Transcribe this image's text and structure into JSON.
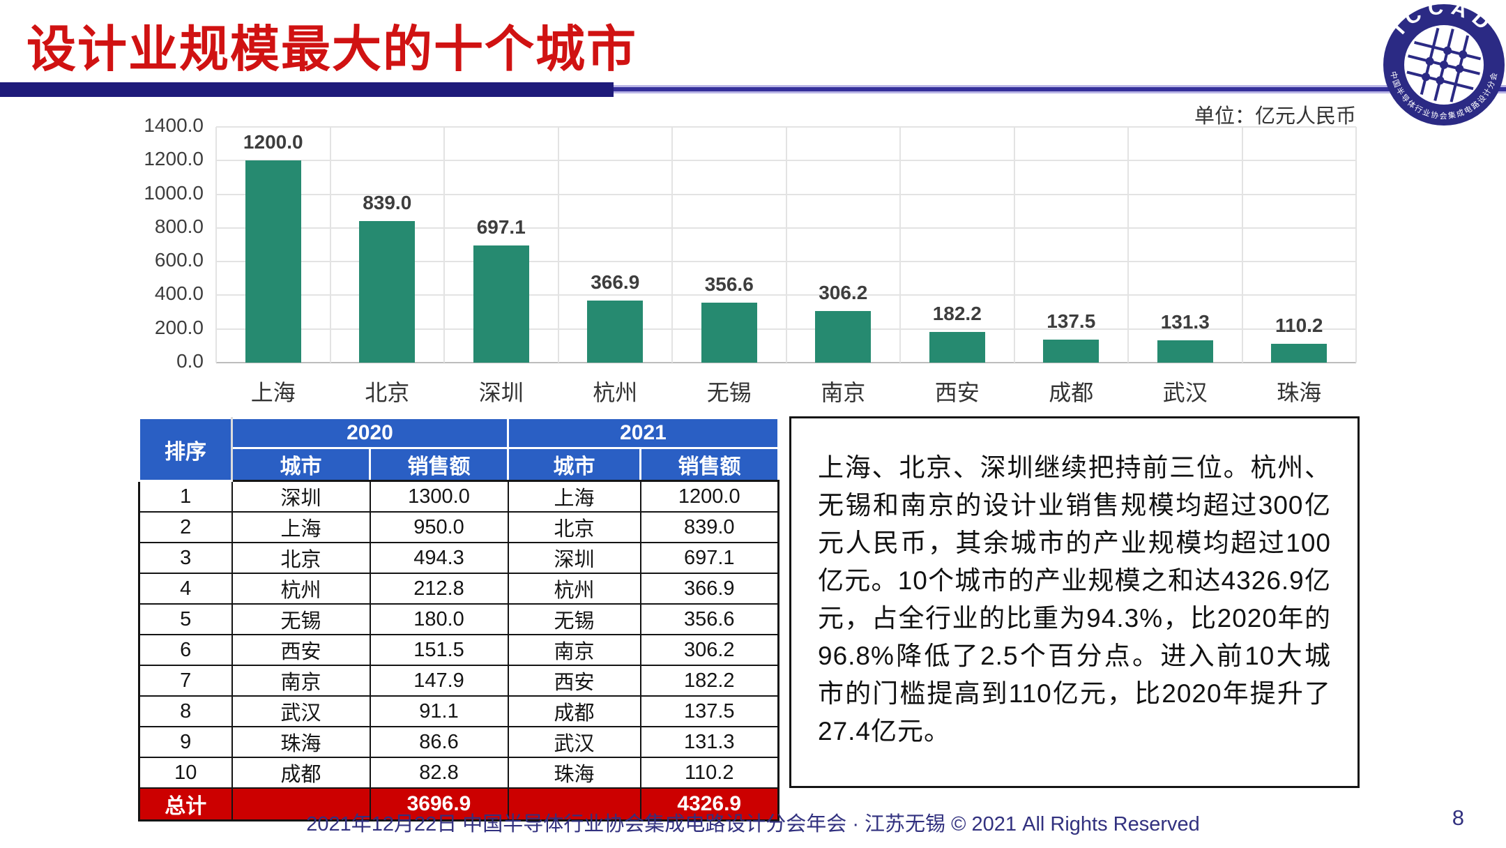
{
  "page": {
    "title": "设计业规模最大的十个城市",
    "unit_label": "单位：亿元人民币",
    "footer": "2021年12月22日 中国半导体行业协会集成电路设计分会年会 · 江苏无锡 © 2021 All Rights Reserved",
    "page_number": "8"
  },
  "logo": {
    "top_text": "ICCAD",
    "bottom_text": "中国半导体行业协会集成电路设计分会"
  },
  "chart_data": {
    "type": "bar",
    "title": "",
    "xlabel": "",
    "ylabel": "",
    "unit": "亿元人民币",
    "categories": [
      "上海",
      "北京",
      "深圳",
      "杭州",
      "无锡",
      "南京",
      "西安",
      "成都",
      "武汉",
      "珠海"
    ],
    "values": [
      1200.0,
      839.0,
      697.1,
      366.9,
      356.6,
      306.2,
      182.2,
      137.5,
      131.3,
      110.2
    ],
    "value_labels": [
      "1200.0",
      "839.0",
      "697.1",
      "366.9",
      "356.6",
      "306.2",
      "182.2",
      "137.5",
      "131.3",
      "110.2"
    ],
    "ylim": [
      0,
      1400
    ],
    "ytick_interval": 200,
    "ytick_labels": [
      "0.0",
      "200.0",
      "400.0",
      "600.0",
      "800.0",
      "1000.0",
      "1200.0",
      "1400.0"
    ],
    "grid": true,
    "legend": false,
    "bar_color": "#268a70"
  },
  "table": {
    "header": {
      "rank": "排序",
      "year_2020": "2020",
      "year_2021": "2021",
      "city": "城市",
      "sales": "销售额"
    },
    "rows": [
      {
        "rank": "1",
        "city_2020": "深圳",
        "sales_2020": "1300.0",
        "city_2021": "上海",
        "sales_2021": "1200.0"
      },
      {
        "rank": "2",
        "city_2020": "上海",
        "sales_2020": "950.0",
        "city_2021": "北京",
        "sales_2021": "839.0"
      },
      {
        "rank": "3",
        "city_2020": "北京",
        "sales_2020": "494.3",
        "city_2021": "深圳",
        "sales_2021": "697.1"
      },
      {
        "rank": "4",
        "city_2020": "杭州",
        "sales_2020": "212.8",
        "city_2021": "杭州",
        "sales_2021": "366.9"
      },
      {
        "rank": "5",
        "city_2020": "无锡",
        "sales_2020": "180.0",
        "city_2021": "无锡",
        "sales_2021": "356.6"
      },
      {
        "rank": "6",
        "city_2020": "西安",
        "sales_2020": "151.5",
        "city_2021": "南京",
        "sales_2021": "306.2"
      },
      {
        "rank": "7",
        "city_2020": "南京",
        "sales_2020": "147.9",
        "city_2021": "西安",
        "sales_2021": "182.2"
      },
      {
        "rank": "8",
        "city_2020": "武汉",
        "sales_2020": "91.1",
        "city_2021": "成都",
        "sales_2021": "137.5"
      },
      {
        "rank": "9",
        "city_2020": "珠海",
        "sales_2020": "86.6",
        "city_2021": "武汉",
        "sales_2021": "131.3"
      },
      {
        "rank": "10",
        "city_2020": "成都",
        "sales_2020": "82.8",
        "city_2021": "珠海",
        "sales_2021": "110.2"
      }
    ],
    "total": {
      "label": "总计",
      "sales_2020": "3696.9",
      "sales_2021": "4326.9"
    }
  },
  "note": {
    "text": "上海、北京、深圳继续把持前三位。杭州、无锡和南京的设计业销售规模均超过300亿元人民币，其余城市的产业规模均超过100亿元。10个城市的产业规模之和达4326.9亿元，占全行业的比重为94.3%，比2020年的96.8%降低了2.5个百分点。进入前10大城市的门槛提高到110亿元，比2020年提升了27.4亿元。"
  },
  "colors": {
    "title_red": "#d01212",
    "rule_navy": "#1e1b7a",
    "bar_teal": "#268a70",
    "header_blue": "#2a5fc4",
    "total_red": "#cc0000",
    "footer_navy": "#32317f"
  }
}
